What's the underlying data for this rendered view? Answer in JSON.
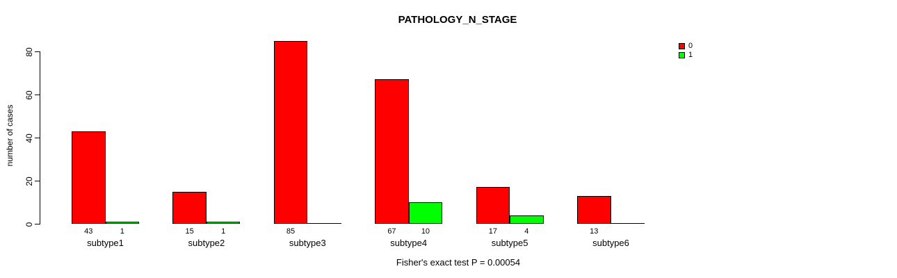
{
  "title": "PATHOLOGY_N_STAGE",
  "caption": "Fisher's exact test P = 0.00054",
  "chart_data": {
    "type": "bar",
    "title": "PATHOLOGY_N_STAGE",
    "xlabel": "",
    "ylabel": "number of cases",
    "categories": [
      "subtype1",
      "subtype2",
      "subtype3",
      "subtype4",
      "subtype5",
      "subtype6"
    ],
    "series": [
      {
        "name": "0",
        "color": "#ff0000",
        "values": [
          43,
          15,
          85,
          67,
          17,
          13
        ]
      },
      {
        "name": "1",
        "color": "#00ff00",
        "values": [
          1,
          1,
          0,
          10,
          4,
          0
        ]
      }
    ],
    "bar_value_labels": [
      [
        "43",
        "1"
      ],
      [
        "15",
        "1"
      ],
      [
        "85",
        null
      ],
      [
        "67",
        "10"
      ],
      [
        "17",
        "4"
      ],
      [
        "13",
        null
      ]
    ],
    "yticks": [
      0,
      20,
      40,
      60,
      80
    ],
    "ylim": [
      0,
      85
    ],
    "grid": false,
    "legend_position": "top-right",
    "annotation": "Fisher's exact test P = 0.00054"
  },
  "legend": {
    "items": [
      {
        "label": "0",
        "color": "#ff0000"
      },
      {
        "label": "1",
        "color": "#00ff00"
      }
    ]
  },
  "colors": {
    "bar_border": "#000000",
    "axis": "#000000",
    "background": "#ffffff",
    "text": "#000000"
  }
}
